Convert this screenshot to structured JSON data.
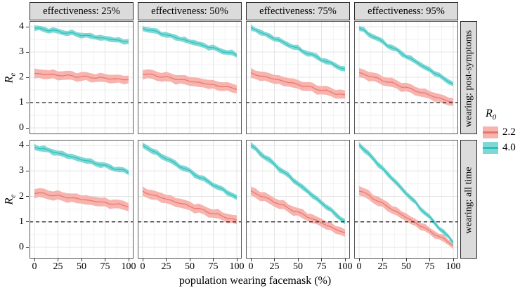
{
  "chart_data": {
    "type": "line",
    "title": "",
    "x_label": "population wearing facemask (%)",
    "y_axis": {
      "main": "R",
      "sub": "e"
    },
    "x_ticks": [
      0,
      25,
      50,
      75,
      100
    ],
    "y_ticks": [
      0,
      1,
      2,
      3,
      4
    ],
    "x_range": [
      0,
      100
    ],
    "ylim": [
      0,
      4.2
    ],
    "grid": true,
    "reference_line_y": 1,
    "col_facets": [
      "effectiveness: 25%",
      "effectiveness: 50%",
      "effectiveness: 75%",
      "effectiveness: 95%"
    ],
    "row_facets": [
      "wearing: post-symptoms",
      "wearing: all time"
    ],
    "legend": {
      "title_main": "R",
      "title_sub": "0",
      "position": "right",
      "entries": [
        {
          "label": "2.2",
          "fill": "#f7b3ae",
          "line": "#e8756c"
        },
        {
          "label": "4.0",
          "fill": "#7fd8d4",
          "line": "#2abfbe"
        }
      ]
    },
    "panels": [
      {
        "row": 0,
        "col": 0,
        "series": [
          {
            "name": "2.2",
            "y_start": 2.15,
            "y_end": 1.9,
            "band_start": 0.18,
            "band_end": 0.16
          },
          {
            "name": "4.0",
            "y_start": 3.95,
            "y_end": 3.4,
            "band_start": 0.1,
            "band_end": 0.1
          }
        ]
      },
      {
        "row": 0,
        "col": 1,
        "series": [
          {
            "name": "2.2",
            "y_start": 2.15,
            "y_end": 1.55,
            "band_start": 0.18,
            "band_end": 0.17
          },
          {
            "name": "4.0",
            "y_start": 3.95,
            "y_end": 2.88,
            "band_start": 0.1,
            "band_end": 0.1
          }
        ]
      },
      {
        "row": 0,
        "col": 2,
        "series": [
          {
            "name": "2.2",
            "y_start": 2.15,
            "y_end": 1.28,
            "band_start": 0.18,
            "band_end": 0.17
          },
          {
            "name": "4.0",
            "y_start": 3.95,
            "y_end": 2.3,
            "band_start": 0.1,
            "band_end": 0.1
          }
        ]
      },
      {
        "row": 0,
        "col": 3,
        "series": [
          {
            "name": "2.2",
            "y_start": 2.18,
            "y_end": 1.0,
            "band_start": 0.18,
            "band_end": 0.16
          },
          {
            "name": "4.0",
            "y_start": 3.95,
            "y_end": 1.73,
            "band_start": 0.1,
            "band_end": 0.1
          }
        ]
      },
      {
        "row": 1,
        "col": 0,
        "series": [
          {
            "name": "2.2",
            "y_start": 2.15,
            "y_end": 1.62,
            "band_start": 0.18,
            "band_end": 0.17
          },
          {
            "name": "4.0",
            "y_start": 3.95,
            "y_end": 2.95,
            "band_start": 0.11,
            "band_end": 0.1
          }
        ]
      },
      {
        "row": 1,
        "col": 1,
        "series": [
          {
            "name": "2.2",
            "y_start": 2.18,
            "y_end": 1.05,
            "band_start": 0.18,
            "band_end": 0.17
          },
          {
            "name": "4.0",
            "y_start": 4.0,
            "y_end": 1.95,
            "band_start": 0.11,
            "band_end": 0.1
          }
        ]
      },
      {
        "row": 1,
        "col": 2,
        "series": [
          {
            "name": "2.2",
            "y_start": 2.2,
            "y_end": 0.55,
            "band_start": 0.18,
            "band_end": 0.15
          },
          {
            "name": "4.0",
            "y_start": 4.0,
            "y_end": 1.0,
            "band_start": 0.11,
            "band_end": 0.1
          }
        ]
      },
      {
        "row": 1,
        "col": 3,
        "series": [
          {
            "name": "2.2",
            "y_start": 2.25,
            "y_end": 0.1,
            "band_start": 0.18,
            "band_end": 0.12
          },
          {
            "name": "4.0",
            "y_start": 4.05,
            "y_end": 0.2,
            "band_start": 0.11,
            "band_end": 0.09
          }
        ]
      }
    ],
    "colors": {
      "strip_bg": "#dbdbdb",
      "strip_border": "#2b2b2b",
      "panel_border": "#595959",
      "grid_major": "#e4e4e4",
      "grid_minor": "#f2f2f2",
      "reference_line": "#1c1c1c"
    }
  }
}
